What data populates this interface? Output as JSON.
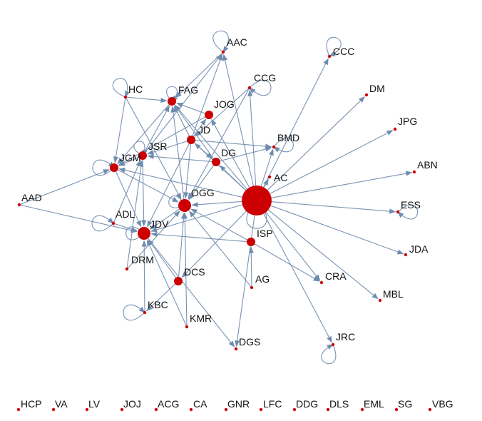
{
  "colors": {
    "node": "#cc0000",
    "edge": "#7a93b3",
    "label": "#111111",
    "background": "#ffffff"
  },
  "graph": {
    "nodes": [
      {
        "id": "AAC",
        "label": "AAC",
        "size": "small"
      },
      {
        "id": "CCC",
        "label": "CCC",
        "size": "small"
      },
      {
        "id": "DM",
        "label": "DM",
        "size": "small"
      },
      {
        "id": "HC",
        "label": "HC",
        "size": "small"
      },
      {
        "id": "FAG",
        "label": "FAG",
        "size": "medium"
      },
      {
        "id": "CCG",
        "label": "CCG",
        "size": "small"
      },
      {
        "id": "JOG",
        "label": "JOG",
        "size": "medium"
      },
      {
        "id": "JD",
        "label": "JD",
        "size": "medium"
      },
      {
        "id": "JPG",
        "label": "JPG",
        "size": "small"
      },
      {
        "id": "BMD",
        "label": "BMD",
        "size": "small"
      },
      {
        "id": "JSR",
        "label": "JSR",
        "size": "medium"
      },
      {
        "id": "DG",
        "label": "DG",
        "size": "medium"
      },
      {
        "id": "JGM",
        "label": "JGM",
        "size": "medium"
      },
      {
        "id": "ABN",
        "label": "ABN",
        "size": "small"
      },
      {
        "id": "AC",
        "label": "AC",
        "size": "small"
      },
      {
        "id": "AAD",
        "label": "AAD",
        "size": "small"
      },
      {
        "id": "OGG",
        "label": "OGG",
        "size": "large"
      },
      {
        "id": "ESS",
        "label": "ESS",
        "size": "small"
      },
      {
        "id": "ADL",
        "label": "ADL",
        "size": "small"
      },
      {
        "id": "JDV",
        "label": "JDV",
        "size": "large"
      },
      {
        "id": "ISP",
        "label": "ISP",
        "size": "huge"
      },
      {
        "id": "JDA",
        "label": "JDA",
        "size": "small"
      },
      {
        "id": "DRM",
        "label": "DRM",
        "size": "small"
      },
      {
        "id": "X1",
        "label": "",
        "size": "medium"
      },
      {
        "id": "DCS",
        "label": "DCS",
        "size": "medium"
      },
      {
        "id": "AG",
        "label": "AG",
        "size": "small"
      },
      {
        "id": "CRA",
        "label": "CRA",
        "size": "small"
      },
      {
        "id": "MBL",
        "label": "MBL",
        "size": "small"
      },
      {
        "id": "KBC",
        "label": "KBC",
        "size": "small"
      },
      {
        "id": "KMR",
        "label": "KMR",
        "size": "small"
      },
      {
        "id": "DGS",
        "label": "DGS",
        "size": "small"
      },
      {
        "id": "JRC",
        "label": "JRC",
        "size": "small"
      },
      {
        "id": "HCP",
        "label": "HCP",
        "size": "small"
      },
      {
        "id": "VA",
        "label": "VA",
        "size": "small"
      },
      {
        "id": "LV",
        "label": "LV",
        "size": "small"
      },
      {
        "id": "JOJ",
        "label": "JOJ",
        "size": "small"
      },
      {
        "id": "ACG",
        "label": "ACG",
        "size": "small"
      },
      {
        "id": "CA",
        "label": "CA",
        "size": "small"
      },
      {
        "id": "GNR",
        "label": "GNR",
        "size": "small"
      },
      {
        "id": "LFC",
        "label": "LFC",
        "size": "small"
      },
      {
        "id": "DDG",
        "label": "DDG",
        "size": "small"
      },
      {
        "id": "DLS",
        "label": "DLS",
        "size": "small"
      },
      {
        "id": "EML",
        "label": "EML",
        "size": "small"
      },
      {
        "id": "SG",
        "label": "SG",
        "size": "small"
      },
      {
        "id": "VBG",
        "label": "VBG",
        "size": "small"
      }
    ],
    "edges": [
      {
        "source": "ISP",
        "target": "CCC"
      },
      {
        "source": "ISP",
        "target": "DM"
      },
      {
        "source": "ISP",
        "target": "JPG"
      },
      {
        "source": "ISP",
        "target": "ABN"
      },
      {
        "source": "ISP",
        "target": "ESS"
      },
      {
        "source": "ISP",
        "target": "JDA"
      },
      {
        "source": "ISP",
        "target": "MBL"
      },
      {
        "source": "ISP",
        "target": "JRC"
      },
      {
        "source": "ISP",
        "target": "CRA"
      },
      {
        "source": "ISP",
        "target": "AC"
      },
      {
        "source": "ISP",
        "target": "BMD"
      },
      {
        "source": "ISP",
        "target": "DG"
      },
      {
        "source": "ISP",
        "target": "JD"
      },
      {
        "source": "ISP",
        "target": "JOG"
      },
      {
        "source": "ISP",
        "target": "AAC"
      },
      {
        "source": "ISP",
        "target": "FAG"
      },
      {
        "source": "ISP",
        "target": "JGM"
      },
      {
        "source": "ISP",
        "target": "OGG"
      },
      {
        "source": "ISP",
        "target": "JDV"
      },
      {
        "source": "ISP",
        "target": "DGS"
      },
      {
        "source": "ISP",
        "target": "DCS"
      },
      {
        "source": "ISP",
        "target": "CCG"
      },
      {
        "source": "X1",
        "target": "JDV"
      },
      {
        "source": "X1",
        "target": "CRA"
      },
      {
        "source": "X1",
        "target": "OGG"
      },
      {
        "source": "AG",
        "target": "X1"
      },
      {
        "source": "AG",
        "target": "OGG"
      },
      {
        "source": "HC",
        "target": "JGM"
      },
      {
        "source": "HC",
        "target": "FAG"
      },
      {
        "source": "HC",
        "target": "OGG"
      },
      {
        "source": "JSR",
        "target": "FAG"
      },
      {
        "source": "JSR",
        "target": "JGM"
      },
      {
        "source": "JSR",
        "target": "JDV"
      },
      {
        "source": "JSR",
        "target": "AAC"
      },
      {
        "source": "JD",
        "target": "FAG"
      },
      {
        "source": "JD",
        "target": "JSR"
      },
      {
        "source": "JD",
        "target": "AAC"
      },
      {
        "source": "JD",
        "target": "JOG"
      },
      {
        "source": "JD",
        "target": "BMD"
      },
      {
        "source": "JD",
        "target": "DG"
      },
      {
        "source": "JD",
        "target": "JDV"
      },
      {
        "source": "JD",
        "target": "OGG"
      },
      {
        "source": "JOG",
        "target": "FAG"
      },
      {
        "source": "JOG",
        "target": "JGM"
      },
      {
        "source": "CCG",
        "target": "JD"
      },
      {
        "source": "CCG",
        "target": "OGG"
      },
      {
        "source": "DG",
        "target": "FAG"
      },
      {
        "source": "DG",
        "target": "JSR"
      },
      {
        "source": "DG",
        "target": "OGG"
      },
      {
        "source": "DG",
        "target": "BMD"
      },
      {
        "source": "JGM",
        "target": "OGG"
      },
      {
        "source": "JGM",
        "target": "JDV"
      },
      {
        "source": "AAD",
        "target": "JGM"
      },
      {
        "source": "AAD",
        "target": "JDV"
      },
      {
        "source": "ADL",
        "target": "JDV"
      },
      {
        "source": "ADL",
        "target": "JSR"
      },
      {
        "source": "OGG",
        "target": "JDV"
      },
      {
        "source": "OGG",
        "target": "FAG"
      },
      {
        "source": "DRM",
        "target": "OGG"
      },
      {
        "source": "DRM",
        "target": "JSR"
      },
      {
        "source": "DCS",
        "target": "JDV"
      },
      {
        "source": "DCS",
        "target": "OGG"
      },
      {
        "source": "DCS",
        "target": "KBC"
      },
      {
        "source": "KBC",
        "target": "JDV"
      },
      {
        "source": "KMR",
        "target": "OGG"
      },
      {
        "source": "KMR",
        "target": "JDV"
      },
      {
        "source": "JDV",
        "target": "DGS"
      },
      {
        "source": "AAC",
        "target": "FAG"
      },
      {
        "source": "FAG",
        "target": "JGM"
      }
    ],
    "self_loops": [
      "AAC",
      "CCC",
      "HC",
      "FAG",
      "CCG",
      "BMD",
      "JGM",
      "ESS",
      "ADL",
      "JDV",
      "ISP",
      "KBC",
      "JRC",
      "JSR",
      "OGG"
    ]
  }
}
